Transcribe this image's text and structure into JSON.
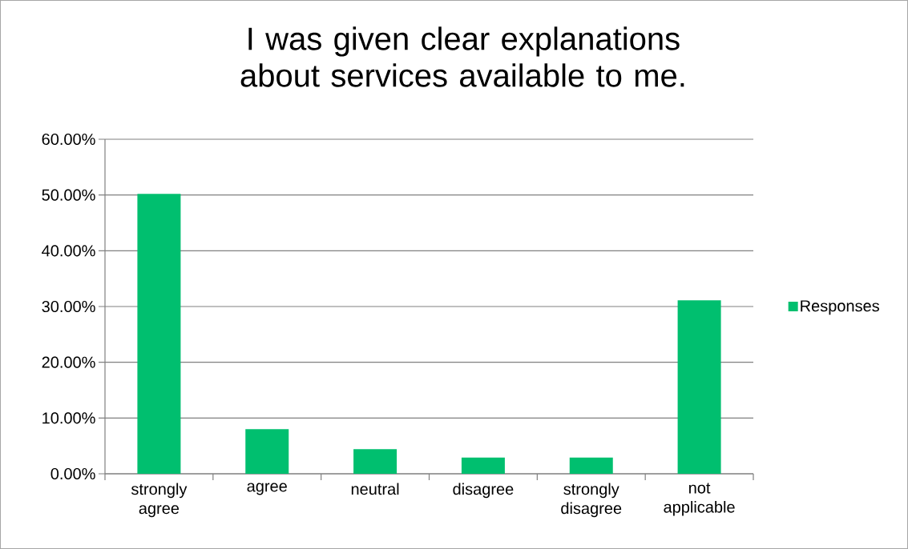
{
  "chart_data": {
    "type": "bar",
    "title": "I was given clear explanations about services available to me.",
    "categories": [
      "strongly agree",
      "agree",
      "neutral",
      "disagree",
      "strongly disagree",
      "not applicable"
    ],
    "series": [
      {
        "name": "Responses",
        "color": "#00bf6f",
        "values": [
          50.2,
          8.0,
          4.4,
          2.9,
          2.9,
          31.1
        ]
      }
    ],
    "ylim": [
      0,
      60
    ],
    "yticks": [
      {
        "value": 0,
        "label": "0.00%"
      },
      {
        "value": 10,
        "label": "10.00%"
      },
      {
        "value": 20,
        "label": "20.00%"
      },
      {
        "value": 30,
        "label": "30.00%"
      },
      {
        "value": 40,
        "label": "40.00%"
      },
      {
        "value": 50,
        "label": "50.00%"
      },
      {
        "value": 60,
        "label": "60.00%"
      }
    ],
    "grid": "y",
    "legend": "right"
  }
}
